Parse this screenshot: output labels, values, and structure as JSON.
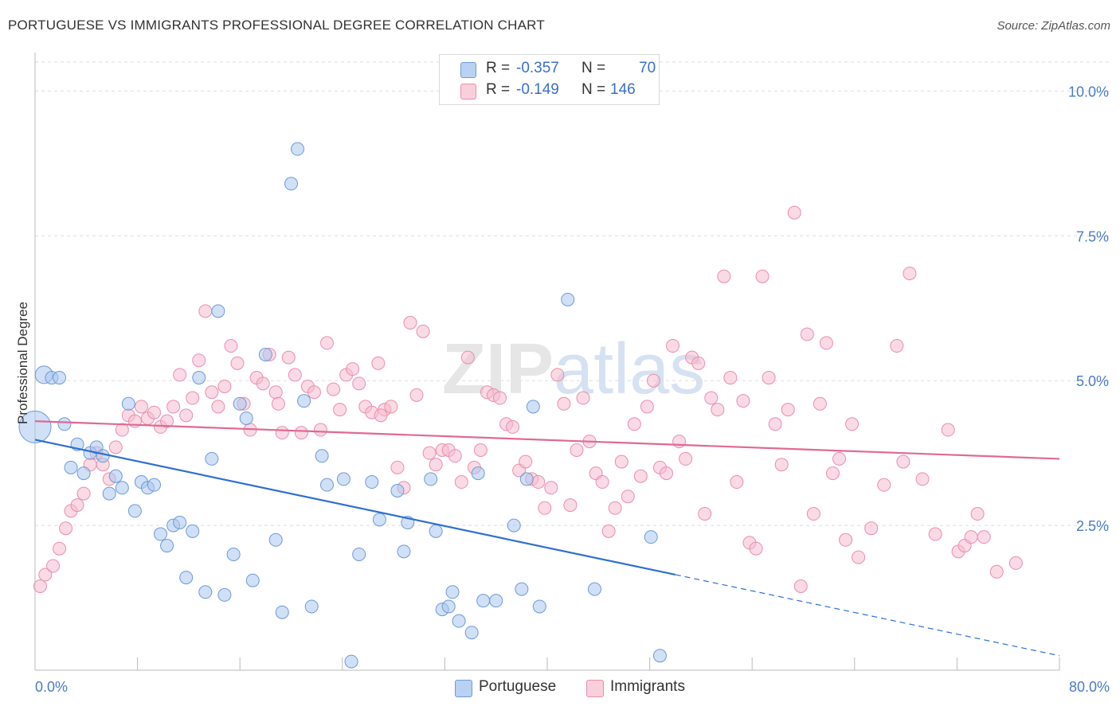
{
  "title": "PORTUGUESE VS IMMIGRANTS PROFESSIONAL DEGREE CORRELATION CHART",
  "source": "Source: ZipAtlas.com",
  "watermark": "ZIPatlas",
  "legend": {
    "rows": [
      {
        "r_label": "R =",
        "r_value": "-0.357",
        "n_label": "N =",
        "n_value": "70"
      },
      {
        "r_label": "R =",
        "r_value": "-0.149",
        "n_label": "N =",
        "n_value": "146"
      }
    ]
  },
  "bottom_legend": {
    "portuguese": "Portuguese",
    "immigrants": "Immigrants"
  },
  "colors": {
    "portuguese_fill": "#a9c6ef",
    "portuguese_stroke": "#6f9ad6",
    "portuguese_line": "#2f6fd0",
    "immigrants_fill": "#f6bccd",
    "immigrants_stroke": "#e98fab",
    "immigrants_line": "#e06994",
    "tick_text": "#4a7cc7",
    "grid": "#dddddd"
  },
  "chart_data": {
    "type": "scatter",
    "title": "PORTUGUESE VS IMMIGRANTS PROFESSIONAL DEGREE CORRELATION CHART",
    "xlabel": "",
    "ylabel": "Professional Degree",
    "xlim": [
      0,
      80
    ],
    "ylim": [
      0,
      10.5
    ],
    "x_tick_labels": [
      "0.0%",
      "80.0%"
    ],
    "y_ticks": [
      2.5,
      5.0,
      7.5,
      10.0
    ],
    "y_tick_labels": [
      "2.5%",
      "5.0%",
      "7.5%",
      "10.0%"
    ],
    "grid": true,
    "legend_position": "top-center",
    "series": [
      {
        "name": "Portuguese",
        "r": -0.357,
        "n": 70,
        "trend": {
          "x0": 0,
          "y0": 3.98,
          "x1": 50,
          "y1": 1.65,
          "dashed_to_x": 80,
          "dashed_to_y": 0.25
        },
        "points": [
          [
            0.0,
            4.2
          ],
          [
            0.7,
            5.1
          ],
          [
            1.3,
            5.05
          ],
          [
            1.9,
            5.05
          ],
          [
            2.3,
            4.25
          ],
          [
            2.8,
            3.5
          ],
          [
            3.3,
            3.9
          ],
          [
            3.8,
            3.4
          ],
          [
            4.3,
            3.75
          ],
          [
            4.8,
            3.85
          ],
          [
            5.3,
            3.7
          ],
          [
            5.8,
            3.05
          ],
          [
            6.3,
            3.35
          ],
          [
            6.8,
            3.15
          ],
          [
            7.3,
            4.6
          ],
          [
            7.8,
            2.75
          ],
          [
            8.3,
            3.25
          ],
          [
            8.8,
            3.15
          ],
          [
            9.3,
            3.2
          ],
          [
            9.8,
            2.35
          ],
          [
            10.3,
            2.15
          ],
          [
            10.8,
            2.5
          ],
          [
            11.3,
            2.55
          ],
          [
            11.8,
            1.6
          ],
          [
            12.3,
            2.4
          ],
          [
            12.8,
            5.05
          ],
          [
            13.3,
            1.35
          ],
          [
            13.8,
            3.65
          ],
          [
            14.3,
            6.2
          ],
          [
            14.8,
            1.3
          ],
          [
            15.5,
            2.0
          ],
          [
            16.0,
            4.6
          ],
          [
            16.5,
            4.35
          ],
          [
            17.0,
            1.55
          ],
          [
            18.0,
            5.45
          ],
          [
            18.8,
            2.25
          ],
          [
            19.3,
            1.0
          ],
          [
            20.0,
            8.4
          ],
          [
            20.5,
            9.0
          ],
          [
            21.0,
            4.65
          ],
          [
            21.6,
            1.1
          ],
          [
            22.4,
            3.7
          ],
          [
            22.8,
            3.2
          ],
          [
            24.1,
            3.3
          ],
          [
            24.7,
            0.15
          ],
          [
            25.3,
            2.0
          ],
          [
            26.3,
            3.25
          ],
          [
            26.9,
            2.6
          ],
          [
            28.3,
            3.1
          ],
          [
            28.8,
            2.05
          ],
          [
            29.1,
            2.55
          ],
          [
            30.9,
            3.3
          ],
          [
            31.3,
            2.4
          ],
          [
            31.8,
            1.05
          ],
          [
            32.3,
            1.1
          ],
          [
            32.6,
            1.35
          ],
          [
            33.1,
            0.85
          ],
          [
            34.1,
            0.65
          ],
          [
            34.6,
            3.4
          ],
          [
            35.0,
            1.2
          ],
          [
            36.0,
            1.2
          ],
          [
            37.4,
            2.5
          ],
          [
            38.0,
            1.4
          ],
          [
            38.4,
            3.3
          ],
          [
            38.9,
            4.55
          ],
          [
            39.4,
            1.1
          ],
          [
            41.6,
            6.4
          ],
          [
            43.7,
            1.4
          ],
          [
            48.1,
            2.3
          ],
          [
            48.8,
            0.25
          ]
        ]
      },
      {
        "name": "Immigrants",
        "r": -0.149,
        "n": 146,
        "trend": {
          "x0": 0,
          "y0": 4.3,
          "x1": 80,
          "y1": 3.65
        },
        "points": [
          [
            0.4,
            1.45
          ],
          [
            0.8,
            1.65
          ],
          [
            1.4,
            1.8
          ],
          [
            1.9,
            2.1
          ],
          [
            2.4,
            2.45
          ],
          [
            2.8,
            2.75
          ],
          [
            3.3,
            2.85
          ],
          [
            3.8,
            3.05
          ],
          [
            4.3,
            3.55
          ],
          [
            4.8,
            3.75
          ],
          [
            5.3,
            3.55
          ],
          [
            5.8,
            3.3
          ],
          [
            6.3,
            3.85
          ],
          [
            6.8,
            4.15
          ],
          [
            7.3,
            4.4
          ],
          [
            7.8,
            4.3
          ],
          [
            8.3,
            4.55
          ],
          [
            8.8,
            4.35
          ],
          [
            9.3,
            4.45
          ],
          [
            9.8,
            4.2
          ],
          [
            10.3,
            4.3
          ],
          [
            10.8,
            4.55
          ],
          [
            11.3,
            5.1
          ],
          [
            11.8,
            4.4
          ],
          [
            12.3,
            4.7
          ],
          [
            12.8,
            5.35
          ],
          [
            13.3,
            6.2
          ],
          [
            13.8,
            4.8
          ],
          [
            14.3,
            4.55
          ],
          [
            14.8,
            4.9
          ],
          [
            15.3,
            5.6
          ],
          [
            15.8,
            5.3
          ],
          [
            16.3,
            4.6
          ],
          [
            16.8,
            4.15
          ],
          [
            17.3,
            5.05
          ],
          [
            17.8,
            4.95
          ],
          [
            18.3,
            5.45
          ],
          [
            18.8,
            4.8
          ],
          [
            19.3,
            4.1
          ],
          [
            19.8,
            5.4
          ],
          [
            20.3,
            5.1
          ],
          [
            20.8,
            4.1
          ],
          [
            21.3,
            4.9
          ],
          [
            21.8,
            4.8
          ],
          [
            22.3,
            4.15
          ],
          [
            22.8,
            5.65
          ],
          [
            23.3,
            4.85
          ],
          [
            23.8,
            4.5
          ],
          [
            24.3,
            5.1
          ],
          [
            24.8,
            5.2
          ],
          [
            25.3,
            4.95
          ],
          [
            25.8,
            4.55
          ],
          [
            26.3,
            4.45
          ],
          [
            26.8,
            5.3
          ],
          [
            27.3,
            4.5
          ],
          [
            27.8,
            4.55
          ],
          [
            28.3,
            3.5
          ],
          [
            28.8,
            3.15
          ],
          [
            29.3,
            6.0
          ],
          [
            29.8,
            4.75
          ],
          [
            30.3,
            5.85
          ],
          [
            30.8,
            3.75
          ],
          [
            31.3,
            3.55
          ],
          [
            31.8,
            3.8
          ],
          [
            32.3,
            3.8
          ],
          [
            32.8,
            3.7
          ],
          [
            33.3,
            3.25
          ],
          [
            33.8,
            5.4
          ],
          [
            34.3,
            3.5
          ],
          [
            34.8,
            3.8
          ],
          [
            35.3,
            4.8
          ],
          [
            35.8,
            4.75
          ],
          [
            36.3,
            4.7
          ],
          [
            36.8,
            4.25
          ],
          [
            37.3,
            4.2
          ],
          [
            37.8,
            3.45
          ],
          [
            38.3,
            3.6
          ],
          [
            38.8,
            3.3
          ],
          [
            39.3,
            3.25
          ],
          [
            39.8,
            2.8
          ],
          [
            40.3,
            3.15
          ],
          [
            40.8,
            5.1
          ],
          [
            41.3,
            4.6
          ],
          [
            41.8,
            2.85
          ],
          [
            42.3,
            3.8
          ],
          [
            42.8,
            4.7
          ],
          [
            43.3,
            3.95
          ],
          [
            43.8,
            3.4
          ],
          [
            44.3,
            3.25
          ],
          [
            44.8,
            2.4
          ],
          [
            45.3,
            2.8
          ],
          [
            45.8,
            3.6
          ],
          [
            46.3,
            3.0
          ],
          [
            46.8,
            4.25
          ],
          [
            47.3,
            3.35
          ],
          [
            47.8,
            4.55
          ],
          [
            48.3,
            5.0
          ],
          [
            48.8,
            3.5
          ],
          [
            49.3,
            3.4
          ],
          [
            49.8,
            5.6
          ],
          [
            50.3,
            3.95
          ],
          [
            50.8,
            3.65
          ],
          [
            51.3,
            5.4
          ],
          [
            51.8,
            5.3
          ],
          [
            52.3,
            2.7
          ],
          [
            52.8,
            4.7
          ],
          [
            53.3,
            4.5
          ],
          [
            53.8,
            6.8
          ],
          [
            54.3,
            5.05
          ],
          [
            54.8,
            3.25
          ],
          [
            55.3,
            4.65
          ],
          [
            55.8,
            2.2
          ],
          [
            56.3,
            2.1
          ],
          [
            56.8,
            6.8
          ],
          [
            57.3,
            5.05
          ],
          [
            57.8,
            4.25
          ],
          [
            58.3,
            3.55
          ],
          [
            58.8,
            4.5
          ],
          [
            59.3,
            7.9
          ],
          [
            59.8,
            1.45
          ],
          [
            60.3,
            5.8
          ],
          [
            60.8,
            2.7
          ],
          [
            61.3,
            4.6
          ],
          [
            61.8,
            5.65
          ],
          [
            62.3,
            3.4
          ],
          [
            62.8,
            3.65
          ],
          [
            63.3,
            2.25
          ],
          [
            63.8,
            4.25
          ],
          [
            64.3,
            1.95
          ],
          [
            65.3,
            2.45
          ],
          [
            66.3,
            3.2
          ],
          [
            67.3,
            5.6
          ],
          [
            67.8,
            3.6
          ],
          [
            68.3,
            6.85
          ],
          [
            69.3,
            3.3
          ],
          [
            70.3,
            2.35
          ],
          [
            71.3,
            4.15
          ],
          [
            72.1,
            2.05
          ],
          [
            72.6,
            2.15
          ],
          [
            73.1,
            2.3
          ],
          [
            73.6,
            2.7
          ],
          [
            74.1,
            2.3
          ],
          [
            75.1,
            1.7
          ],
          [
            76.6,
            1.85
          ],
          [
            19.0,
            4.6
          ],
          [
            27.0,
            4.4
          ]
        ]
      }
    ]
  }
}
